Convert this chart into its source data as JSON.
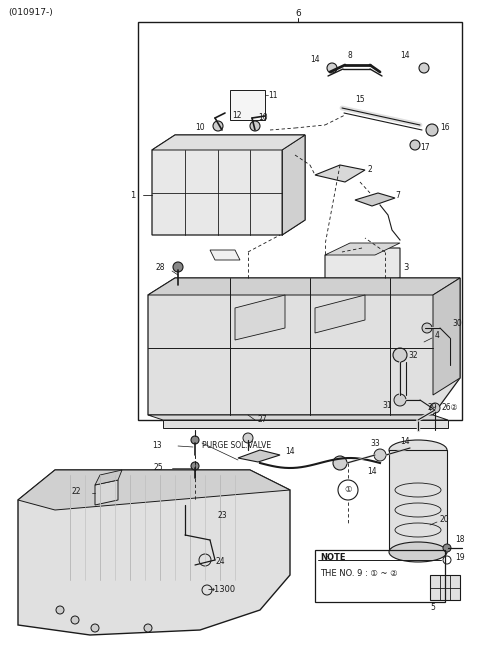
{
  "bg_color": "#ffffff",
  "line_color": "#1a1a1a",
  "fig_width": 4.8,
  "fig_height": 6.55,
  "dpi": 100,
  "header": "(010917-)",
  "label6": "6",
  "note_text1": "NOTE",
  "note_text2": "THE NO. 9 : ① ~ ②",
  "purge_label": "PURGE SOL.VALVE",
  "label1300": "→1300"
}
